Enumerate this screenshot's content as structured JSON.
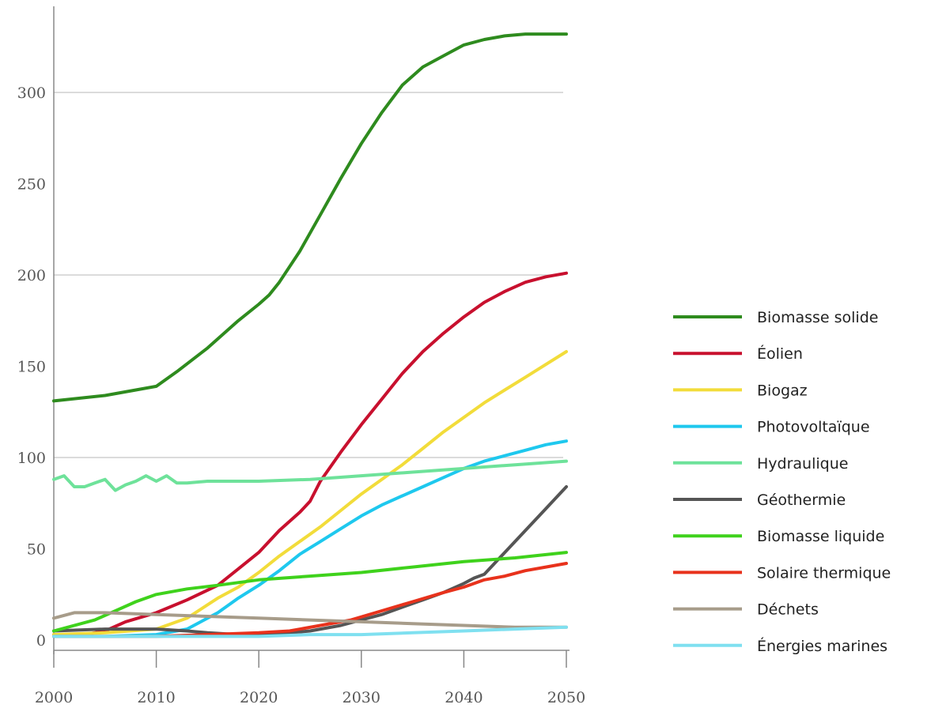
{
  "chart_data": {
    "type": "line",
    "title": "",
    "xlabel": "",
    "ylabel": "",
    "xlim": [
      2000,
      2050
    ],
    "ylim": [
      0,
      330
    ],
    "grid": true,
    "legend_position": "right",
    "x_ticks": [
      "2000",
      "2010",
      "2020",
      "2030",
      "2040",
      "2050"
    ],
    "y_ticks": [
      "0",
      "50",
      "100",
      "150",
      "200",
      "250",
      "300"
    ],
    "x_tick_values": [
      2000,
      2010,
      2020,
      2030,
      2040,
      2050
    ],
    "y_tick_values": [
      0,
      50,
      100,
      150,
      200,
      250,
      300
    ],
    "grid_values": [
      100,
      200,
      300
    ],
    "series": [
      {
        "name": "Biomasse solide",
        "color": "#2e8b1e",
        "points": [
          [
            2000,
            131
          ],
          [
            2005,
            134
          ],
          [
            2010,
            139
          ],
          [
            2012,
            147
          ],
          [
            2015,
            160
          ],
          [
            2018,
            175
          ],
          [
            2020,
            184
          ],
          [
            2021,
            189
          ],
          [
            2022,
            196
          ],
          [
            2024,
            213
          ],
          [
            2026,
            233
          ],
          [
            2028,
            253
          ],
          [
            2030,
            272
          ],
          [
            2032,
            289
          ],
          [
            2034,
            304
          ],
          [
            2036,
            314
          ],
          [
            2038,
            320
          ],
          [
            2040,
            326
          ],
          [
            2042,
            329
          ],
          [
            2044,
            331
          ],
          [
            2046,
            332
          ],
          [
            2048,
            332
          ],
          [
            2050,
            332
          ]
        ]
      },
      {
        "name": "Éolien",
        "color": "#c8102e",
        "points": [
          [
            2000,
            3
          ],
          [
            2003,
            3
          ],
          [
            2005,
            5
          ],
          [
            2007,
            10
          ],
          [
            2010,
            15
          ],
          [
            2013,
            22
          ],
          [
            2016,
            30
          ],
          [
            2018,
            39
          ],
          [
            2020,
            48
          ],
          [
            2022,
            60
          ],
          [
            2024,
            70
          ],
          [
            2025,
            76
          ],
          [
            2026,
            87
          ],
          [
            2028,
            103
          ],
          [
            2030,
            118
          ],
          [
            2032,
            132
          ],
          [
            2034,
            146
          ],
          [
            2036,
            158
          ],
          [
            2038,
            168
          ],
          [
            2040,
            177
          ],
          [
            2042,
            185
          ],
          [
            2044,
            191
          ],
          [
            2046,
            196
          ],
          [
            2048,
            199
          ],
          [
            2050,
            201
          ]
        ]
      },
      {
        "name": "Biogaz",
        "color": "#f2dc3a",
        "points": [
          [
            2000,
            3
          ],
          [
            2005,
            4
          ],
          [
            2010,
            6
          ],
          [
            2013,
            12
          ],
          [
            2016,
            23
          ],
          [
            2018,
            29
          ],
          [
            2020,
            37
          ],
          [
            2022,
            46
          ],
          [
            2024,
            54
          ],
          [
            2026,
            62
          ],
          [
            2028,
            71
          ],
          [
            2030,
            80
          ],
          [
            2032,
            88
          ],
          [
            2034,
            96
          ],
          [
            2036,
            105
          ],
          [
            2038,
            114
          ],
          [
            2040,
            122
          ],
          [
            2042,
            130
          ],
          [
            2044,
            137
          ],
          [
            2046,
            144
          ],
          [
            2048,
            151
          ],
          [
            2050,
            158
          ]
        ]
      },
      {
        "name": "Photovoltaïque",
        "color": "#1ec8ee",
        "points": [
          [
            2000,
            2
          ],
          [
            2005,
            2
          ],
          [
            2010,
            3
          ],
          [
            2013,
            6
          ],
          [
            2016,
            15
          ],
          [
            2018,
            23
          ],
          [
            2020,
            30
          ],
          [
            2022,
            38
          ],
          [
            2024,
            47
          ],
          [
            2026,
            54
          ],
          [
            2028,
            61
          ],
          [
            2030,
            68
          ],
          [
            2032,
            74
          ],
          [
            2034,
            79
          ],
          [
            2036,
            84
          ],
          [
            2038,
            89
          ],
          [
            2040,
            94
          ],
          [
            2042,
            98
          ],
          [
            2044,
            101
          ],
          [
            2046,
            104
          ],
          [
            2048,
            107
          ],
          [
            2050,
            109
          ]
        ]
      },
      {
        "name": "Hydraulique",
        "color": "#6ee29a",
        "points": [
          [
            2000,
            88
          ],
          [
            2001,
            90
          ],
          [
            2002,
            84
          ],
          [
            2003,
            84
          ],
          [
            2004,
            86
          ],
          [
            2005,
            88
          ],
          [
            2006,
            82
          ],
          [
            2007,
            85
          ],
          [
            2008,
            87
          ],
          [
            2009,
            90
          ],
          [
            2010,
            87
          ],
          [
            2011,
            90
          ],
          [
            2012,
            86
          ],
          [
            2013,
            86
          ],
          [
            2015,
            87
          ],
          [
            2020,
            87
          ],
          [
            2025,
            88
          ],
          [
            2030,
            90
          ],
          [
            2035,
            92
          ],
          [
            2040,
            94
          ],
          [
            2045,
            96
          ],
          [
            2050,
            98
          ]
        ]
      },
      {
        "name": "Géothermie",
        "color": "#555555",
        "points": [
          [
            2000,
            5
          ],
          [
            2005,
            6
          ],
          [
            2010,
            6
          ],
          [
            2013,
            5
          ],
          [
            2015,
            4
          ],
          [
            2018,
            3
          ],
          [
            2020,
            3
          ],
          [
            2023,
            4
          ],
          [
            2025,
            5
          ],
          [
            2028,
            8
          ],
          [
            2030,
            11
          ],
          [
            2032,
            14
          ],
          [
            2034,
            18
          ],
          [
            2036,
            22
          ],
          [
            2038,
            26
          ],
          [
            2040,
            31
          ],
          [
            2041,
            34
          ],
          [
            2042,
            36
          ],
          [
            2044,
            48
          ],
          [
            2046,
            60
          ],
          [
            2048,
            72
          ],
          [
            2050,
            84
          ]
        ]
      },
      {
        "name": "Biomasse liquide",
        "color": "#3fd21c",
        "points": [
          [
            2000,
            5
          ],
          [
            2004,
            11
          ],
          [
            2008,
            21
          ],
          [
            2010,
            25
          ],
          [
            2013,
            28
          ],
          [
            2016,
            30
          ],
          [
            2020,
            33
          ],
          [
            2025,
            35
          ],
          [
            2030,
            37
          ],
          [
            2035,
            40
          ],
          [
            2040,
            43
          ],
          [
            2045,
            45
          ],
          [
            2050,
            48
          ]
        ]
      },
      {
        "name": "Solaire thermique",
        "color": "#e8321c",
        "points": [
          [
            2000,
            2
          ],
          [
            2005,
            2
          ],
          [
            2010,
            2
          ],
          [
            2015,
            3
          ],
          [
            2020,
            4
          ],
          [
            2023,
            5
          ],
          [
            2026,
            8
          ],
          [
            2029,
            11
          ],
          [
            2032,
            16
          ],
          [
            2035,
            21
          ],
          [
            2038,
            26
          ],
          [
            2040,
            29
          ],
          [
            2042,
            33
          ],
          [
            2044,
            35
          ],
          [
            2046,
            38
          ],
          [
            2048,
            40
          ],
          [
            2050,
            42
          ]
        ]
      },
      {
        "name": "Déchets",
        "color": "#a79c8a",
        "points": [
          [
            2000,
            12
          ],
          [
            2002,
            15
          ],
          [
            2005,
            15
          ],
          [
            2010,
            14
          ],
          [
            2015,
            13
          ],
          [
            2020,
            12
          ],
          [
            2025,
            11
          ],
          [
            2030,
            10
          ],
          [
            2035,
            9
          ],
          [
            2040,
            8
          ],
          [
            2045,
            7
          ],
          [
            2050,
            7
          ]
        ]
      },
      {
        "name": "Énergies marines",
        "color": "#7fe0f0",
        "points": [
          [
            2000,
            2
          ],
          [
            2005,
            2
          ],
          [
            2010,
            2
          ],
          [
            2015,
            2
          ],
          [
            2020,
            2
          ],
          [
            2025,
            3
          ],
          [
            2030,
            3
          ],
          [
            2035,
            4
          ],
          [
            2040,
            5
          ],
          [
            2045,
            6
          ],
          [
            2050,
            7
          ]
        ]
      }
    ]
  }
}
